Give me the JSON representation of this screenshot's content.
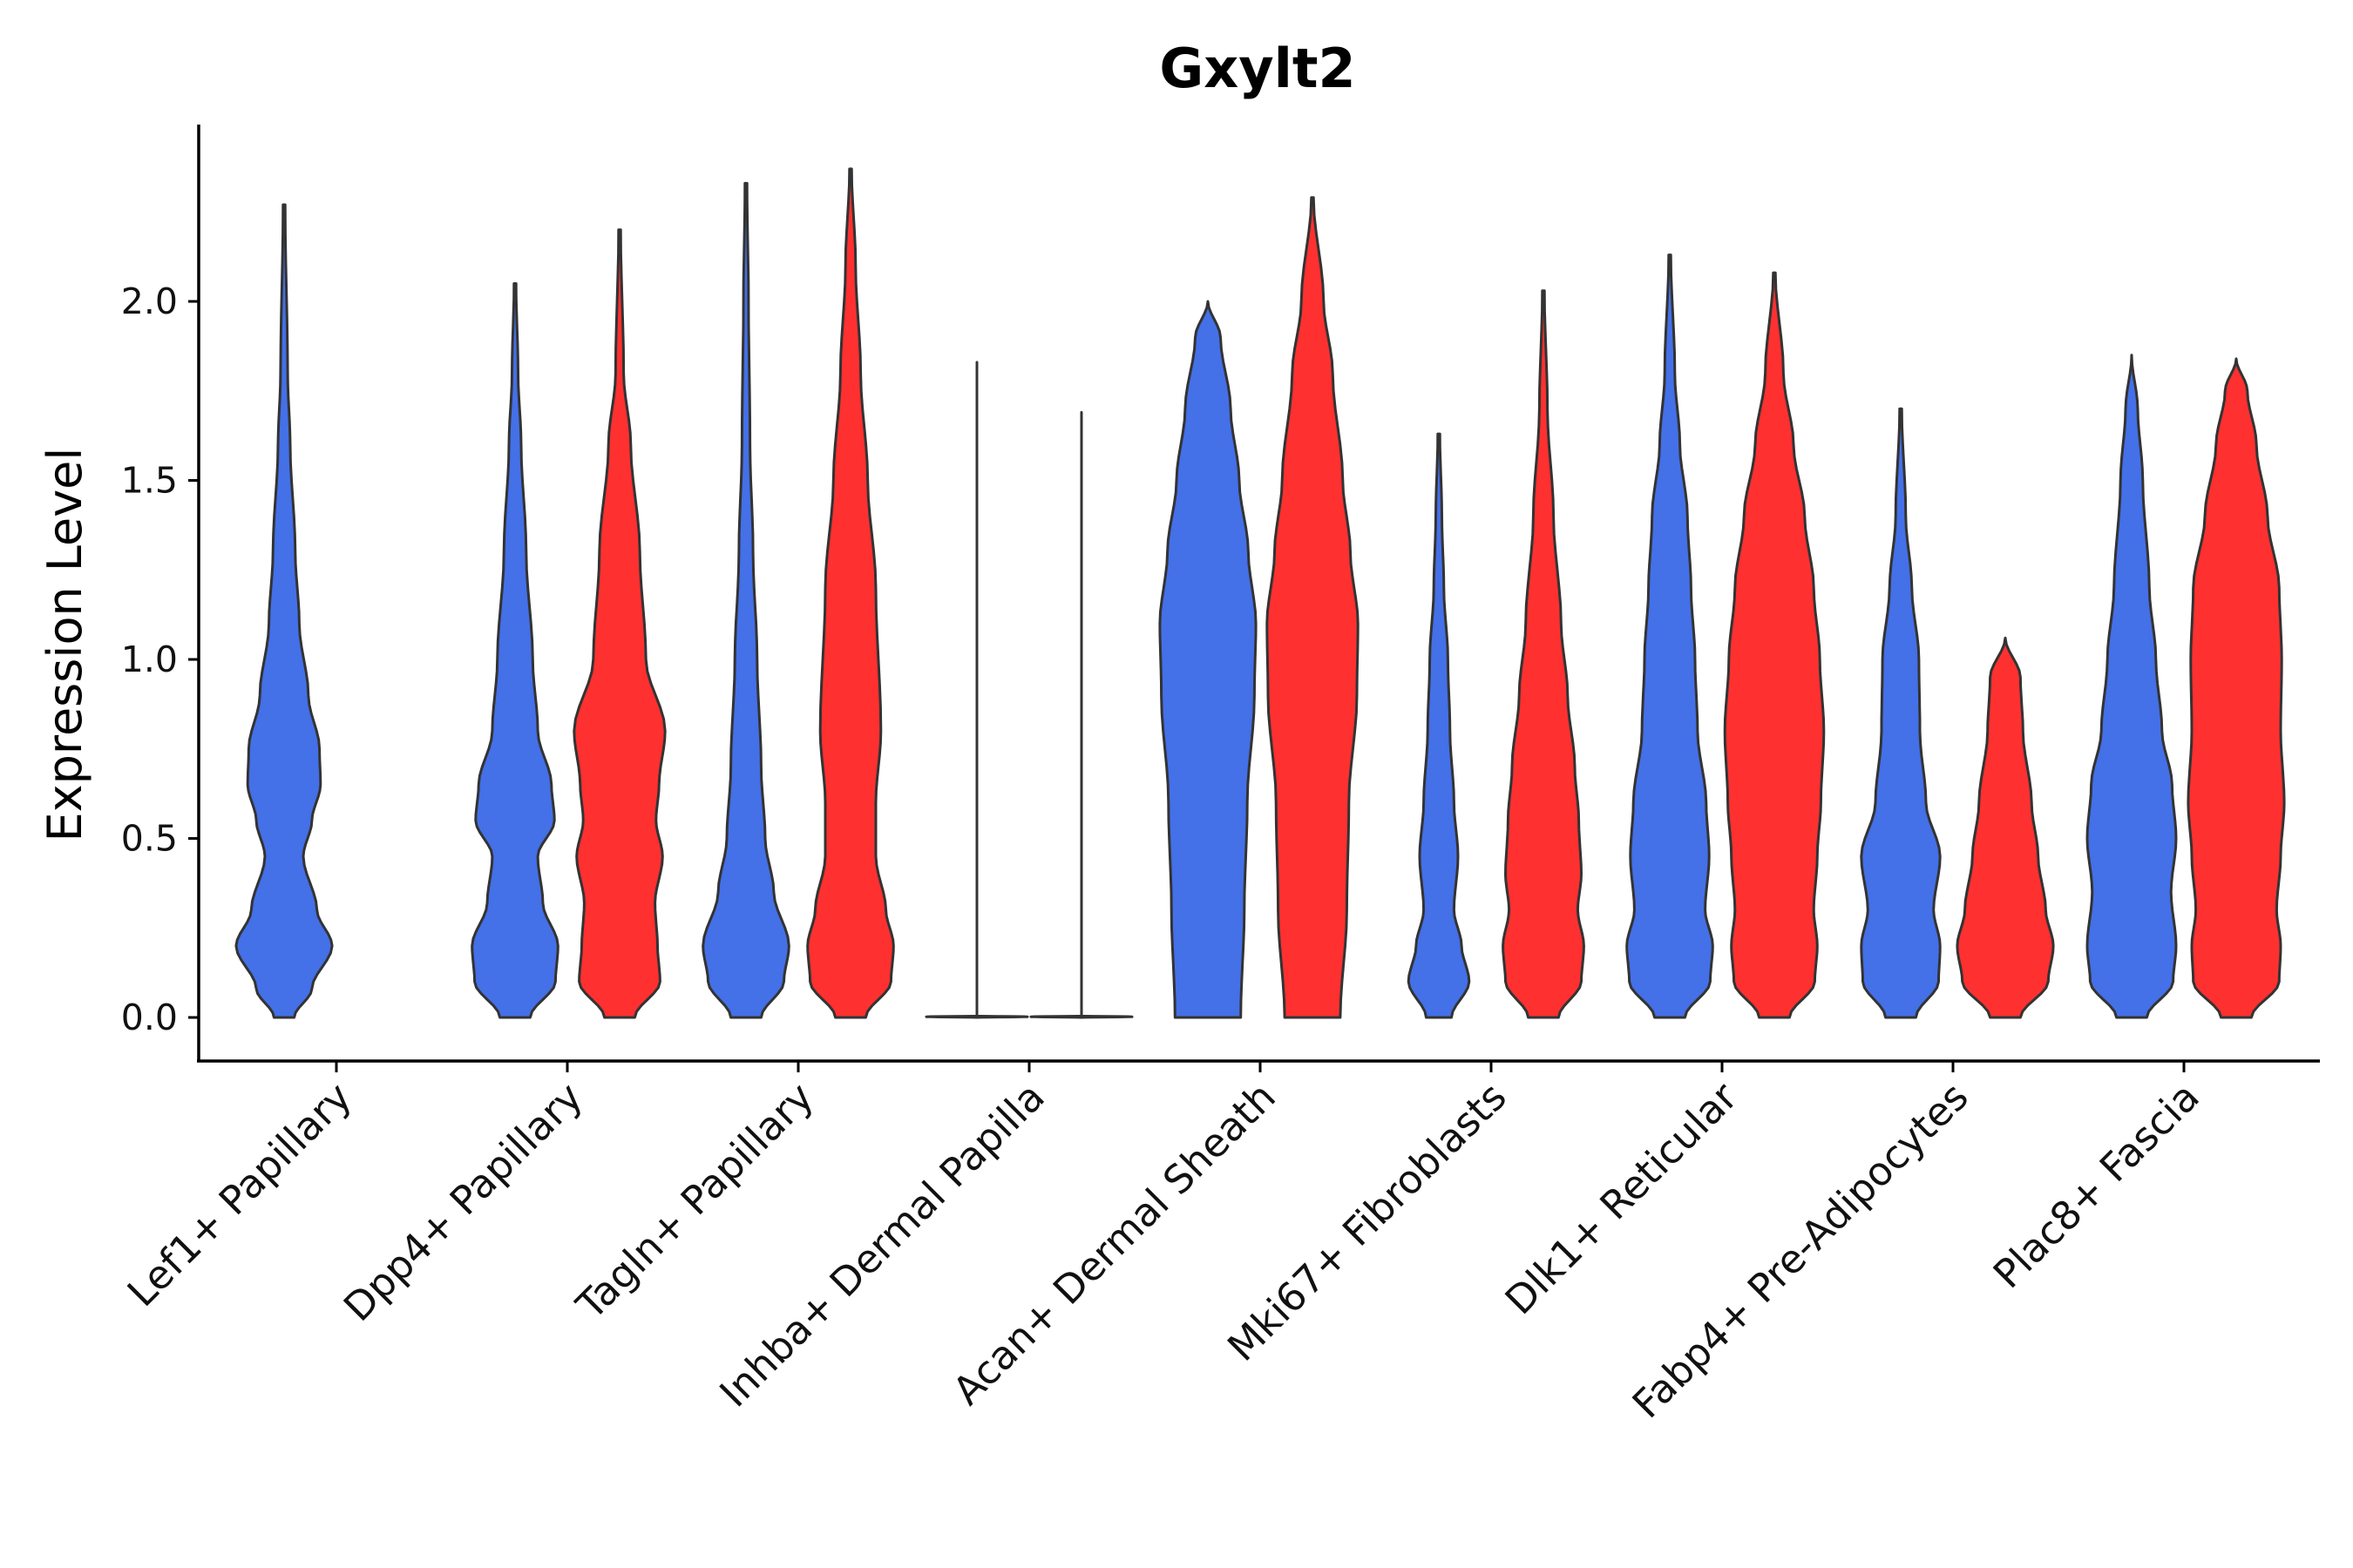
{
  "chart_data": {
    "type": "violin",
    "title": "Gxylt2",
    "xlabel": "",
    "ylabel": "Expression Level",
    "ylim": [
      -0.12,
      2.5
    ],
    "yticks": [
      "0.0",
      "0.5",
      "1.0",
      "1.5",
      "2.0"
    ],
    "grid": false,
    "legend": "none",
    "group_colors": [
      "#4470E8",
      "#FF3030"
    ],
    "categories": [
      "Lef1+ Papillary",
      "Dpp4+ Papillary",
      "Tagln+ Papillary",
      "Inhba+ Dermal Papilla",
      "Acan+ Dermal Sheath",
      "Mki67+ Fibroblasts",
      "Dlk1+ Reticular",
      "Fabp4+ Pre-Adipocytes",
      "Plac8+ Fascia"
    ],
    "violins": [
      {
        "category": 0,
        "group": 0,
        "max": 2.27,
        "density": [
          [
            0,
            0.2
          ],
          [
            0.08,
            0.55
          ],
          [
            0.2,
            0.95
          ],
          [
            0.3,
            0.65
          ],
          [
            0.45,
            0.38
          ],
          [
            0.55,
            0.55
          ],
          [
            0.65,
            0.72
          ],
          [
            0.75,
            0.7
          ],
          [
            0.9,
            0.48
          ],
          [
            1.1,
            0.3
          ],
          [
            1.3,
            0.22
          ],
          [
            1.6,
            0.12
          ],
          [
            1.8,
            0.07
          ],
          [
            2.27,
            0.02
          ]
        ]
      },
      {
        "category": 1,
        "group": 0,
        "max": 2.05,
        "density": [
          [
            0,
            0.3
          ],
          [
            0.1,
            0.8
          ],
          [
            0.2,
            0.85
          ],
          [
            0.32,
            0.55
          ],
          [
            0.45,
            0.45
          ],
          [
            0.55,
            0.78
          ],
          [
            0.65,
            0.72
          ],
          [
            0.8,
            0.45
          ],
          [
            1.0,
            0.35
          ],
          [
            1.3,
            0.22
          ],
          [
            1.6,
            0.12
          ],
          [
            1.8,
            0.06
          ],
          [
            2.05,
            0.02
          ]
        ]
      },
      {
        "category": 1,
        "group": 1,
        "max": 2.2,
        "density": [
          [
            0,
            0.3
          ],
          [
            0.1,
            0.8
          ],
          [
            0.2,
            0.75
          ],
          [
            0.32,
            0.7
          ],
          [
            0.45,
            0.85
          ],
          [
            0.55,
            0.72
          ],
          [
            0.65,
            0.78
          ],
          [
            0.8,
            0.9
          ],
          [
            1.0,
            0.52
          ],
          [
            1.3,
            0.4
          ],
          [
            1.6,
            0.22
          ],
          [
            1.8,
            0.08
          ],
          [
            2.2,
            0.02
          ]
        ]
      },
      {
        "category": 2,
        "group": 0,
        "max": 2.33,
        "density": [
          [
            0,
            0.3
          ],
          [
            0.1,
            0.75
          ],
          [
            0.2,
            0.85
          ],
          [
            0.35,
            0.55
          ],
          [
            0.5,
            0.38
          ],
          [
            0.7,
            0.3
          ],
          [
            1.0,
            0.22
          ],
          [
            1.3,
            0.14
          ],
          [
            1.6,
            0.08
          ],
          [
            2.0,
            0.05
          ],
          [
            2.33,
            0.02
          ]
        ]
      },
      {
        "category": 2,
        "group": 1,
        "max": 2.37,
        "density": [
          [
            0,
            0.3
          ],
          [
            0.1,
            0.8
          ],
          [
            0.2,
            0.85
          ],
          [
            0.3,
            0.7
          ],
          [
            0.45,
            0.5
          ],
          [
            0.6,
            0.5
          ],
          [
            0.8,
            0.6
          ],
          [
            1.2,
            0.5
          ],
          [
            1.5,
            0.34
          ],
          [
            1.8,
            0.2
          ],
          [
            2.1,
            0.1
          ],
          [
            2.37,
            0.02
          ]
        ]
      },
      {
        "category": 3,
        "group": 0,
        "max": 1.83,
        "density": [
          [
            0,
            0.0
          ],
          [
            0.002,
            1.0
          ],
          [
            0.004,
            0.0
          ],
          [
            1.83,
            0.0
          ]
        ]
      },
      {
        "category": 3,
        "group": 1,
        "max": 1.69,
        "density": [
          [
            0,
            0.0
          ],
          [
            0.002,
            1.0
          ],
          [
            0.004,
            0.0
          ],
          [
            1.69,
            0.0
          ]
        ]
      },
      {
        "category": 4,
        "group": 0,
        "max": 2.0,
        "density": [
          [
            0,
            0.65
          ],
          [
            0.3,
            0.72
          ],
          [
            0.6,
            0.78
          ],
          [
            0.9,
            0.92
          ],
          [
            1.1,
            0.95
          ],
          [
            1.3,
            0.8
          ],
          [
            1.5,
            0.62
          ],
          [
            1.7,
            0.45
          ],
          [
            1.9,
            0.25
          ],
          [
            2.0,
            0.0
          ]
        ]
      },
      {
        "category": 4,
        "group": 1,
        "max": 2.29,
        "density": [
          [
            0,
            0.55
          ],
          [
            0.3,
            0.68
          ],
          [
            0.6,
            0.72
          ],
          [
            0.9,
            0.88
          ],
          [
            1.1,
            0.9
          ],
          [
            1.3,
            0.75
          ],
          [
            1.5,
            0.6
          ],
          [
            1.8,
            0.4
          ],
          [
            2.0,
            0.22
          ],
          [
            2.29,
            0.02
          ]
        ]
      },
      {
        "category": 5,
        "group": 0,
        "max": 1.63,
        "density": [
          [
            0,
            0.25
          ],
          [
            0.1,
            0.6
          ],
          [
            0.2,
            0.45
          ],
          [
            0.3,
            0.3
          ],
          [
            0.45,
            0.38
          ],
          [
            0.6,
            0.3
          ],
          [
            0.8,
            0.22
          ],
          [
            1.0,
            0.18
          ],
          [
            1.2,
            0.1
          ],
          [
            1.4,
            0.06
          ],
          [
            1.63,
            0.02
          ]
        ]
      },
      {
        "category": 5,
        "group": 1,
        "max": 2.03,
        "density": [
          [
            0,
            0.3
          ],
          [
            0.1,
            0.75
          ],
          [
            0.2,
            0.8
          ],
          [
            0.3,
            0.68
          ],
          [
            0.4,
            0.75
          ],
          [
            0.55,
            0.7
          ],
          [
            0.7,
            0.62
          ],
          [
            0.9,
            0.48
          ],
          [
            1.1,
            0.35
          ],
          [
            1.4,
            0.2
          ],
          [
            1.7,
            0.08
          ],
          [
            2.03,
            0.02
          ]
        ]
      },
      {
        "category": 6,
        "group": 0,
        "max": 2.13,
        "density": [
          [
            0,
            0.3
          ],
          [
            0.1,
            0.8
          ],
          [
            0.2,
            0.85
          ],
          [
            0.3,
            0.7
          ],
          [
            0.45,
            0.78
          ],
          [
            0.6,
            0.72
          ],
          [
            0.8,
            0.55
          ],
          [
            1.0,
            0.5
          ],
          [
            1.2,
            0.42
          ],
          [
            1.4,
            0.35
          ],
          [
            1.6,
            0.2
          ],
          [
            1.8,
            0.1
          ],
          [
            2.13,
            0.02
          ]
        ]
      },
      {
        "category": 6,
        "group": 1,
        "max": 2.08,
        "density": [
          [
            0,
            0.3
          ],
          [
            0.1,
            0.8
          ],
          [
            0.2,
            0.85
          ],
          [
            0.3,
            0.78
          ],
          [
            0.45,
            0.85
          ],
          [
            0.6,
            0.92
          ],
          [
            0.8,
            0.98
          ],
          [
            1.0,
            0.9
          ],
          [
            1.2,
            0.78
          ],
          [
            1.4,
            0.6
          ],
          [
            1.6,
            0.38
          ],
          [
            1.8,
            0.18
          ],
          [
            2.08,
            0.02
          ]
        ]
      },
      {
        "category": 7,
        "group": 0,
        "max": 1.7,
        "density": [
          [
            0,
            0.3
          ],
          [
            0.1,
            0.75
          ],
          [
            0.2,
            0.78
          ],
          [
            0.3,
            0.65
          ],
          [
            0.45,
            0.78
          ],
          [
            0.6,
            0.5
          ],
          [
            0.8,
            0.38
          ],
          [
            1.0,
            0.36
          ],
          [
            1.2,
            0.22
          ],
          [
            1.4,
            0.1
          ],
          [
            1.7,
            0.02
          ]
        ]
      },
      {
        "category": 7,
        "group": 1,
        "max": 1.06,
        "density": [
          [
            0,
            0.3
          ],
          [
            0.1,
            0.85
          ],
          [
            0.2,
            0.95
          ],
          [
            0.3,
            0.8
          ],
          [
            0.45,
            0.65
          ],
          [
            0.6,
            0.52
          ],
          [
            0.8,
            0.35
          ],
          [
            0.95,
            0.3
          ],
          [
            1.06,
            0.0
          ]
        ]
      },
      {
        "category": 8,
        "group": 0,
        "max": 1.85,
        "density": [
          [
            0,
            0.3
          ],
          [
            0.1,
            0.82
          ],
          [
            0.2,
            0.88
          ],
          [
            0.35,
            0.78
          ],
          [
            0.5,
            0.88
          ],
          [
            0.65,
            0.8
          ],
          [
            0.8,
            0.6
          ],
          [
            1.0,
            0.48
          ],
          [
            1.2,
            0.35
          ],
          [
            1.5,
            0.22
          ],
          [
            1.7,
            0.12
          ],
          [
            1.85,
            0.0
          ]
        ]
      },
      {
        "category": 8,
        "group": 1,
        "max": 1.84,
        "density": [
          [
            0,
            0.3
          ],
          [
            0.1,
            0.85
          ],
          [
            0.2,
            0.88
          ],
          [
            0.3,
            0.8
          ],
          [
            0.45,
            0.88
          ],
          [
            0.6,
            0.95
          ],
          [
            0.8,
            0.88
          ],
          [
            1.0,
            0.9
          ],
          [
            1.2,
            0.85
          ],
          [
            1.4,
            0.62
          ],
          [
            1.6,
            0.4
          ],
          [
            1.75,
            0.22
          ],
          [
            1.84,
            0.0
          ]
        ]
      }
    ]
  }
}
